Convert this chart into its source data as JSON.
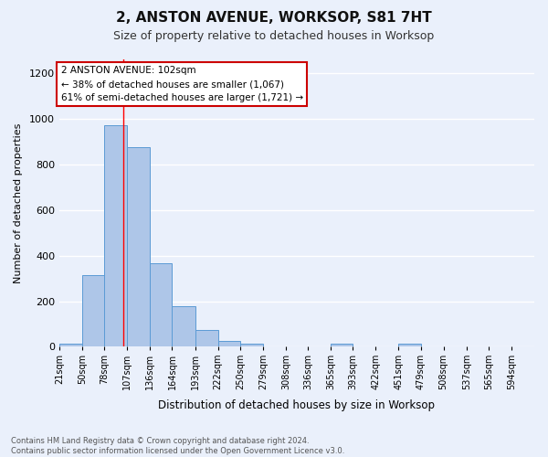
{
  "title": "2, ANSTON AVENUE, WORKSOP, S81 7HT",
  "subtitle": "Size of property relative to detached houses in Worksop",
  "xlabel": "Distribution of detached houses by size in Worksop",
  "ylabel": "Number of detached properties",
  "bin_labels": [
    "21sqm",
    "50sqm",
    "78sqm",
    "107sqm",
    "136sqm",
    "164sqm",
    "193sqm",
    "222sqm",
    "250sqm",
    "279sqm",
    "308sqm",
    "336sqm",
    "365sqm",
    "393sqm",
    "422sqm",
    "451sqm",
    "479sqm",
    "508sqm",
    "537sqm",
    "565sqm",
    "594sqm"
  ],
  "bar_values": [
    15,
    315,
    970,
    875,
    365,
    180,
    75,
    25,
    15,
    0,
    0,
    0,
    12,
    0,
    0,
    12,
    0,
    0,
    0,
    0,
    0
  ],
  "bar_color": "#aec6e8",
  "bar_edge_color": "#5b9bd5",
  "background_color": "#eaf0fb",
  "grid_color": "#ffffff",
  "red_line_x": 102,
  "annotation_text": "2 ANSTON AVENUE: 102sqm\n← 38% of detached houses are smaller (1,067)\n61% of semi-detached houses are larger (1,721) →",
  "annotation_box_color": "#ffffff",
  "annotation_box_edge": "#cc0000",
  "footnote": "Contains HM Land Registry data © Crown copyright and database right 2024.\nContains public sector information licensed under the Open Government Licence v3.0.",
  "ylim": [
    0,
    1260
  ],
  "yticks": [
    0,
    200,
    400,
    600,
    800,
    1000,
    1200
  ]
}
